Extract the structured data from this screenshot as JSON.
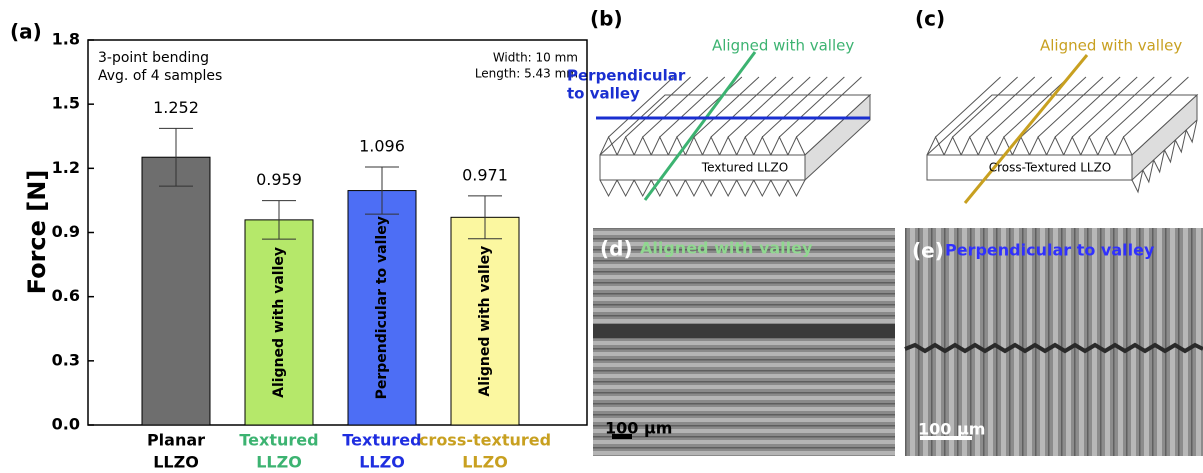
{
  "chart_data": {
    "type": "bar",
    "panel_label": "(a)",
    "ylabel": "Force [N]",
    "annotations": [
      "3-point bending",
      "Avg. of 4 samples",
      "Width: 10 mm",
      "Length: 5.43 mm"
    ],
    "categories": [
      [
        "Planar",
        "LLZO"
      ],
      [
        "Textured",
        "LLZO"
      ],
      [
        "Textured",
        "LLZO"
      ],
      [
        "cross-textured",
        "LLZO"
      ]
    ],
    "category_colors": [
      "#000000",
      "#3cb371",
      "#1f2ee0",
      "#c8a020"
    ],
    "bar_labels": [
      null,
      "Aligned with valley",
      "Perpendicular to valley",
      "Aligned with valley"
    ],
    "colors": [
      "#6e6e6e",
      "#b5e86a",
      "#4d6ef5",
      "#fbf7a0"
    ],
    "values": [
      1.252,
      0.959,
      1.096,
      0.971
    ],
    "errors": [
      0.135,
      0.09,
      0.11,
      0.1
    ],
    "ylim": [
      0,
      1.8
    ],
    "yticks": [
      {
        "value": 0,
        "label": "0.0"
      },
      0.3,
      0.6,
      0.9,
      1.2,
      1.5,
      1.8
    ]
  },
  "diagrams": {
    "b": {
      "label": "(b)",
      "aligned": "Aligned with valley",
      "perpendicular": [
        "Perpendicular",
        "to valley"
      ],
      "sample": "Textured LLZO"
    },
    "c": {
      "label": "(c)",
      "aligned": "Aligned with valley",
      "sample": "Cross-Textured LLZO"
    }
  },
  "images": {
    "d": {
      "label": "(d)",
      "caption": "Aligned with valley",
      "scale": "100 µm"
    },
    "e": {
      "label": "(e)",
      "caption": "Perpendicular to valley",
      "scale": "100 µm"
    }
  }
}
